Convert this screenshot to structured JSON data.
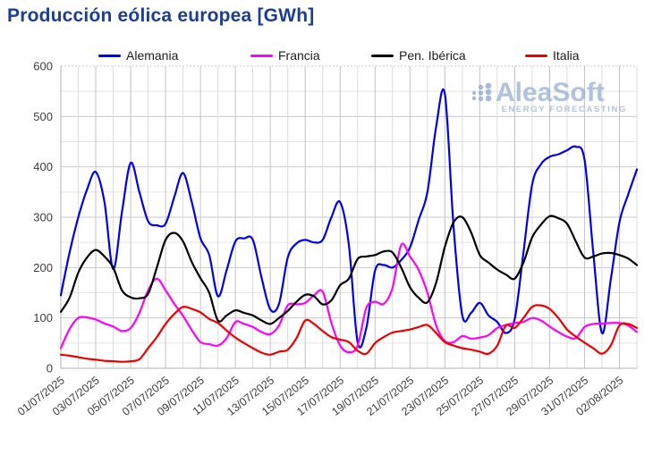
{
  "header": {
    "title": "Producción eólica europea [GWh]"
  },
  "watermark": {
    "brand": "AleaSoft",
    "tagline": "ENERGY FORECASTING"
  },
  "chart_data": {
    "type": "line",
    "title": "Producción eólica europea [GWh]",
    "xlabel": "",
    "ylabel": "GWh",
    "ylim": [
      0,
      600
    ],
    "y_tick_labels": [
      0,
      100,
      200,
      300,
      400,
      500,
      600
    ],
    "grid": true,
    "legend_position": "top",
    "x_tick_labels": [
      "01/07/2025",
      "03/07/2025",
      "05/07/2025",
      "07/07/2025",
      "09/07/2025",
      "11/07/2025",
      "13/07/2025",
      "15/07/2025",
      "17/07/2025",
      "19/07/2025",
      "21/07/2025",
      "23/07/2025",
      "25/07/2025",
      "27/07/2025",
      "29/07/2025",
      "31/07/2025",
      "02/08/2025"
    ],
    "x_span_days": 33,
    "sample_step_days": 0.5,
    "series": [
      {
        "name": "Alemania",
        "color": "#0000ee",
        "values": [
          145,
          230,
          300,
          355,
          390,
          330,
          197,
          310,
          408,
          350,
          292,
          284,
          287,
          340,
          388,
          330,
          258,
          225,
          143,
          195,
          252,
          258,
          255,
          180,
          117,
          128,
          220,
          248,
          255,
          250,
          255,
          300,
          330,
          245,
          52,
          80,
          194,
          205,
          200,
          215,
          240,
          295,
          350,
          480,
          545,
          280,
          105,
          110,
          130,
          105,
          92,
          70,
          98,
          230,
          365,
          405,
          420,
          425,
          433,
          440,
          414,
          230,
          70,
          175,
          290,
          345,
          395
        ]
      },
      {
        "name": "Francia",
        "color": "#ff00ff",
        "values": [
          40,
          78,
          100,
          101,
          97,
          89,
          83,
          74,
          80,
          110,
          155,
          178,
          155,
          128,
          104,
          76,
          52,
          48,
          45,
          60,
          92,
          88,
          82,
          72,
          68,
          85,
          125,
          127,
          130,
          145,
          152,
          90,
          45,
          32,
          45,
          120,
          132,
          128,
          160,
          245,
          222,
          195,
          150,
          85,
          54,
          52,
          64,
          59,
          61,
          66,
          80,
          86,
          90,
          92,
          100,
          95,
          83,
          72,
          63,
          60,
          82,
          88,
          89,
          90,
          90,
          85,
          72
        ]
      },
      {
        "name": "Pen. Ibérica",
        "color": "#000000",
        "values": [
          112,
          140,
          190,
          220,
          235,
          222,
          200,
          155,
          141,
          139,
          148,
          200,
          255,
          269,
          252,
          211,
          179,
          150,
          95,
          105,
          115,
          110,
          105,
          95,
          88,
          100,
          114,
          132,
          146,
          143,
          127,
          135,
          165,
          178,
          217,
          222,
          225,
          232,
          230,
          200,
          161,
          140,
          131,
          170,
          241,
          290,
          300,
          270,
          225,
          210,
          196,
          186,
          178,
          210,
          260,
          285,
          302,
          298,
          287,
          252,
          220,
          222,
          228,
          229,
          225,
          218,
          205
        ]
      },
      {
        "name": "Italia",
        "color": "#ee0000",
        "values": [
          27,
          25,
          22,
          19,
          17,
          15,
          14,
          13,
          14,
          18,
          40,
          62,
          88,
          108,
          122,
          118,
          111,
          98,
          90,
          75,
          61,
          50,
          40,
          31,
          27,
          33,
          37,
          60,
          95,
          88,
          74,
          62,
          57,
          52,
          35,
          29,
          50,
          62,
          71,
          74,
          77,
          82,
          86,
          70,
          52,
          45,
          40,
          37,
          33,
          29,
          45,
          85,
          80,
          100,
          122,
          125,
          118,
          100,
          77,
          63,
          51,
          40,
          29,
          45,
          85,
          88,
          80
        ]
      }
    ]
  }
}
